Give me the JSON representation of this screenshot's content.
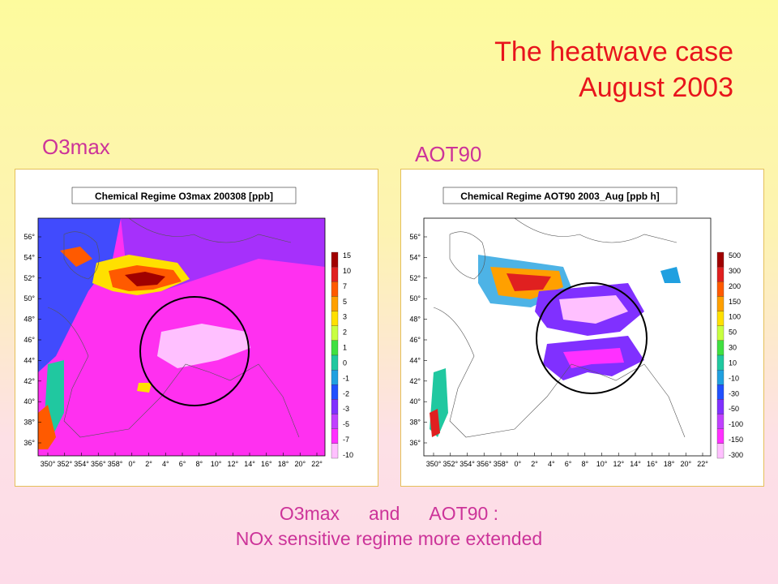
{
  "slide": {
    "title_line1": "The heatwave case",
    "title_line2": "August 2003",
    "left_label": "O3max",
    "right_label": "AOT90",
    "caption_word1": "O3max",
    "caption_word2": "and",
    "caption_word3": "AOT90 :",
    "caption_line2": "NOx sensitive regime more extended"
  },
  "maps": [
    {
      "title": "Chemical Regime O3max 200308 [ppb]",
      "lat_labels": [
        "56°",
        "54°",
        "52°",
        "50°",
        "48°",
        "46°",
        "44°",
        "42°",
        "40°",
        "38°",
        "36°"
      ],
      "lon_labels": [
        "350°",
        "352°",
        "354°",
        "356°",
        "358°",
        "0°",
        "2°",
        "4°",
        "6°",
        "8°",
        "10°",
        "12°",
        "14°",
        "16°",
        "18°",
        "20°",
        "22°"
      ],
      "colorbar_labels": [
        "15",
        "10",
        "7",
        "5",
        "3",
        "2",
        "1",
        "0",
        "-1",
        "-2",
        "-3",
        "-5",
        "-7",
        "-10"
      ],
      "colorbar_colors": [
        "#a00000",
        "#e02020",
        "#ff5a00",
        "#ffa000",
        "#ffe000",
        "#c8ff40",
        "#40e040",
        "#20c8a0",
        "#20a0e0",
        "#2050ff",
        "#8030ff",
        "#c040ff",
        "#ff30ff",
        "#ffc0ff"
      ],
      "background_color": "#ff30f0"
    },
    {
      "title": "Chemical Regime AOT90 2003_Aug [ppb h]",
      "lat_labels": [
        "56°",
        "54°",
        "52°",
        "50°",
        "48°",
        "46°",
        "44°",
        "42°",
        "40°",
        "38°",
        "36°"
      ],
      "lon_labels": [
        "350°",
        "352°",
        "354°",
        "356°",
        "358°",
        "0°",
        "2°",
        "4°",
        "6°",
        "8°",
        "10°",
        "12°",
        "14°",
        "16°",
        "18°",
        "20°",
        "22°"
      ],
      "colorbar_labels": [
        "500",
        "300",
        "200",
        "150",
        "100",
        "50",
        "30",
        "10",
        "-10",
        "-30",
        "-50",
        "-100",
        "-150",
        "-300"
      ],
      "colorbar_colors": [
        "#a00000",
        "#e02020",
        "#ff5a00",
        "#ffa000",
        "#ffe000",
        "#c8ff40",
        "#40e040",
        "#20c8a0",
        "#20a0e0",
        "#2050ff",
        "#8030ff",
        "#c040ff",
        "#ff30ff",
        "#ffc0ff"
      ],
      "background_color": "#ffffff"
    }
  ]
}
